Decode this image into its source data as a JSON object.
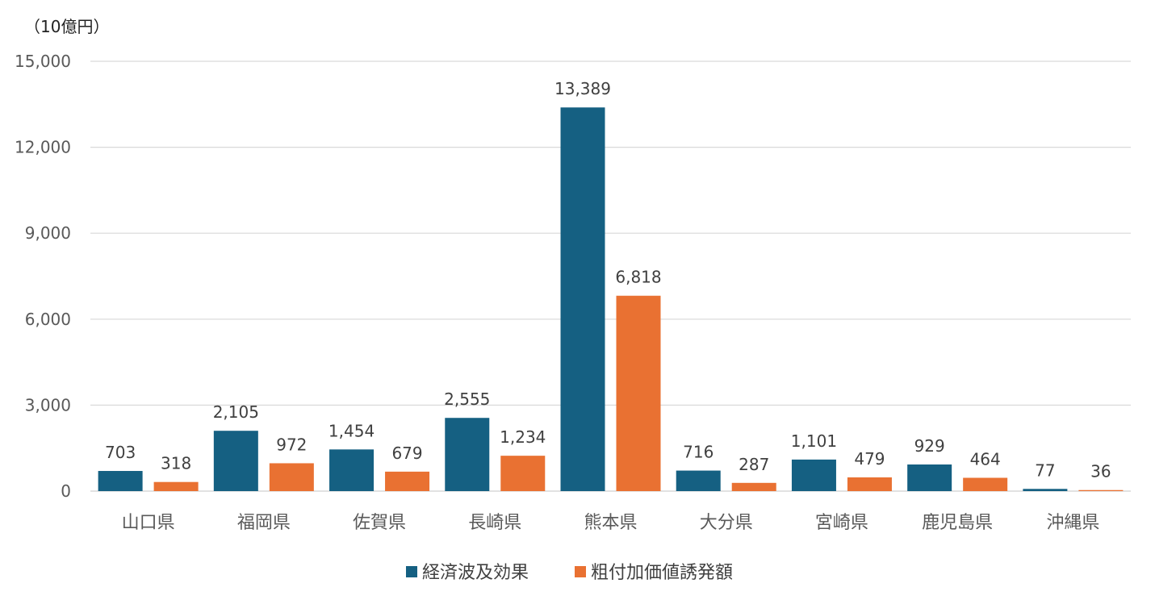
{
  "chart_data": {
    "type": "bar",
    "unit_label": "（10億円）",
    "categories": [
      "山口県",
      "福岡県",
      "佐賀県",
      "長崎県",
      "熊本県",
      "大分県",
      "宮崎県",
      "鹿児島県",
      "沖縄県"
    ],
    "series": [
      {
        "name": "経済波及効果",
        "color": "#156082",
        "values": [
          703,
          2105,
          1454,
          2555,
          13389,
          716,
          1101,
          929,
          77
        ],
        "labels": [
          "703",
          "2,105",
          "1,454",
          "2,555",
          "13,389",
          "716",
          "1,101",
          "929",
          "77"
        ]
      },
      {
        "name": "粗付加価値誘発額",
        "color": "#E97132",
        "values": [
          318,
          972,
          679,
          1234,
          6818,
          287,
          479,
          464,
          36
        ],
        "labels": [
          "318",
          "972",
          "679",
          "1,234",
          "6,818",
          "287",
          "479",
          "464",
          "36"
        ]
      }
    ],
    "ylim": [
      0,
      15000
    ],
    "yticks": [
      0,
      3000,
      6000,
      9000,
      12000,
      15000
    ],
    "ytick_labels": [
      "0",
      "3,000",
      "6,000",
      "9,000",
      "12,000",
      "15,000"
    ],
    "grid": true,
    "legend_position": "bottom"
  }
}
